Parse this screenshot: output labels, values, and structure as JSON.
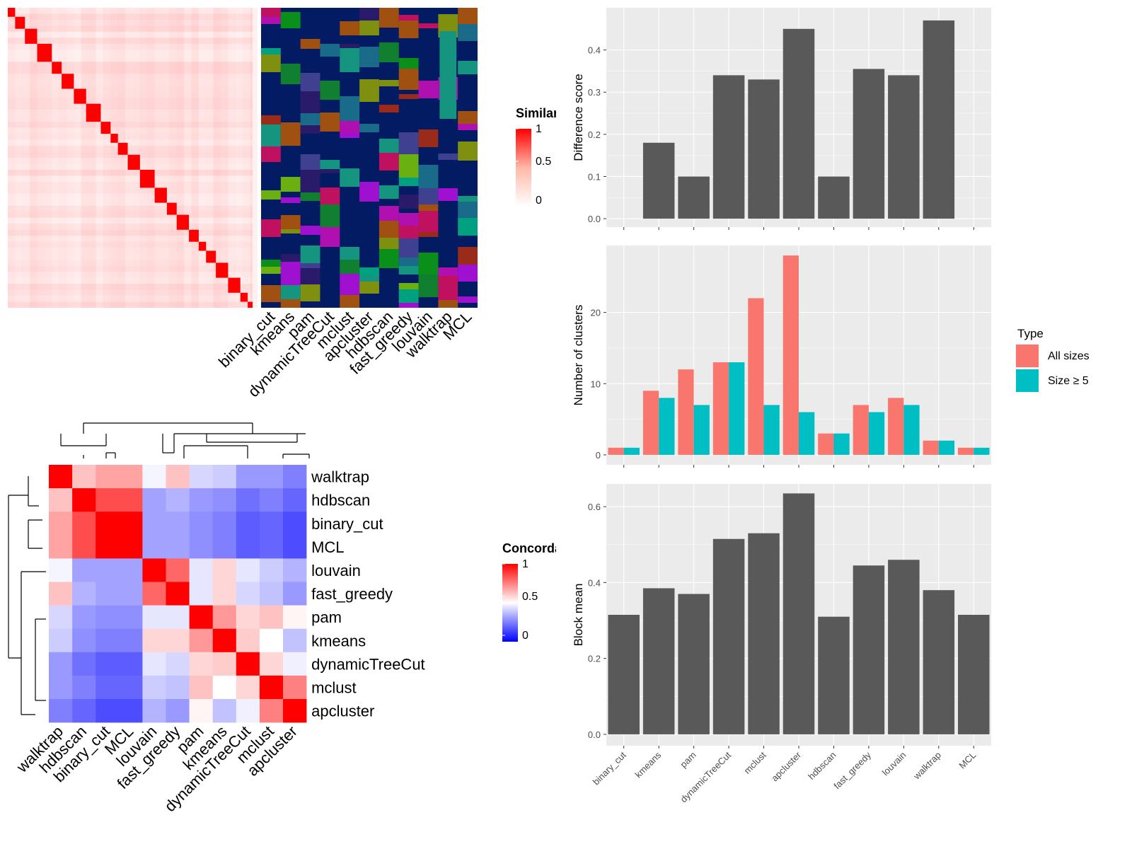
{
  "colors": {
    "panel_bg": "#ebebeb",
    "grid": "#ffffff",
    "bar_fill": "#595959",
    "all_sizes": "#F8766D",
    "size_ge_5": "#00BFC4",
    "heat_high": "#ff0000",
    "heat_mid": "#ffffff",
    "heat_low": "#0000ff",
    "similarity_bg": "#ffe0d8",
    "membership_bg": "#021b63",
    "dendrogram": "#000000"
  },
  "heatmap_similarity": {
    "legend_title": "Similarity",
    "legend_ticks": [
      "1",
      "0.5",
      "0"
    ],
    "n_items": 100
  },
  "membership_columns": [
    "binary_cut",
    "kmeans",
    "pam",
    "dynamicTreeCut",
    "mclust",
    "apcluster",
    "hdbscan",
    "fast_greedy",
    "louvain",
    "walktrap",
    "MCL"
  ],
  "concordance": {
    "legend_title": "Concordance",
    "legend_ticks": [
      "1",
      "0.5",
      "0"
    ],
    "order": [
      "walktrap",
      "hdbscan",
      "binary_cut",
      "MCL",
      "louvain",
      "fast_greedy",
      "pam",
      "kmeans",
      "dynamicTreeCut",
      "mclust",
      "apcluster"
    ],
    "matrix": [
      [
        1.0,
        0.62,
        0.68,
        0.68,
        0.48,
        0.62,
        0.42,
        0.4,
        0.3,
        0.3,
        0.25
      ],
      [
        0.62,
        1.0,
        0.85,
        0.85,
        0.32,
        0.35,
        0.3,
        0.28,
        0.22,
        0.25,
        0.2
      ],
      [
        0.68,
        0.85,
        1.0,
        1.0,
        0.32,
        0.32,
        0.28,
        0.25,
        0.18,
        0.2,
        0.15
      ],
      [
        0.68,
        0.85,
        1.0,
        1.0,
        0.32,
        0.32,
        0.28,
        0.25,
        0.18,
        0.2,
        0.15
      ],
      [
        0.48,
        0.32,
        0.32,
        0.32,
        1.0,
        0.8,
        0.45,
        0.58,
        0.45,
        0.4,
        0.35
      ],
      [
        0.62,
        0.35,
        0.32,
        0.32,
        0.8,
        1.0,
        0.45,
        0.58,
        0.42,
        0.38,
        0.3
      ],
      [
        0.42,
        0.3,
        0.28,
        0.28,
        0.45,
        0.45,
        1.0,
        0.7,
        0.58,
        0.62,
        0.52
      ],
      [
        0.4,
        0.28,
        0.25,
        0.25,
        0.58,
        0.58,
        0.7,
        1.0,
        0.6,
        0.5,
        0.38
      ],
      [
        0.3,
        0.22,
        0.18,
        0.18,
        0.45,
        0.42,
        0.58,
        0.6,
        1.0,
        0.58,
        0.47
      ],
      [
        0.3,
        0.25,
        0.2,
        0.2,
        0.4,
        0.38,
        0.62,
        0.5,
        0.58,
        1.0,
        0.75
      ],
      [
        0.25,
        0.2,
        0.15,
        0.15,
        0.35,
        0.3,
        0.52,
        0.38,
        0.47,
        0.75,
        1.0
      ]
    ]
  },
  "chart_data": [
    {
      "type": "bar",
      "categories": [
        "binary_cut",
        "kmeans",
        "pam",
        "dynamicTreeCut",
        "mclust",
        "apcluster",
        "hdbscan",
        "fast_greedy",
        "louvain",
        "walktrap",
        "MCL"
      ],
      "values": [
        0,
        0.18,
        0.1,
        0.34,
        0.33,
        0.45,
        0.1,
        0.355,
        0.34,
        0.47,
        0
      ],
      "ylabel": "Difference score",
      "ylim": [
        -0.02,
        0.5
      ],
      "yticks": [
        "0.0",
        "0.1",
        "0.2",
        "0.3",
        "0.4"
      ],
      "grid": true
    },
    {
      "type": "bar",
      "categories": [
        "binary_cut",
        "kmeans",
        "pam",
        "dynamicTreeCut",
        "mclust",
        "apcluster",
        "hdbscan",
        "fast_greedy",
        "louvain",
        "walktrap",
        "MCL"
      ],
      "series": [
        {
          "name": "All sizes",
          "values": [
            1,
            9,
            12,
            13,
            22,
            28,
            3,
            7,
            8,
            2,
            1
          ]
        },
        {
          "name": "Size ≥ 5",
          "values": [
            1,
            8,
            7,
            13,
            7,
            6,
            3,
            6,
            7,
            2,
            1
          ]
        }
      ],
      "ylabel": "Number of clusters",
      "ylim": [
        -1.4,
        29.4
      ],
      "yticks": [
        "0",
        "10",
        "20"
      ],
      "legend_title": "Type",
      "legend_position": "right",
      "grid": true
    },
    {
      "type": "bar",
      "categories": [
        "binary_cut",
        "kmeans",
        "pam",
        "dynamicTreeCut",
        "mclust",
        "apcluster",
        "hdbscan",
        "fast_greedy",
        "louvain",
        "walktrap",
        "MCL"
      ],
      "values": [
        0.315,
        0.385,
        0.37,
        0.515,
        0.53,
        0.635,
        0.31,
        0.445,
        0.46,
        0.38,
        0.315
      ],
      "ylabel": "Block mean",
      "ylim": [
        -0.03,
        0.66
      ],
      "yticks": [
        "0.0",
        "0.2",
        "0.4",
        "0.6"
      ],
      "grid": true
    }
  ]
}
